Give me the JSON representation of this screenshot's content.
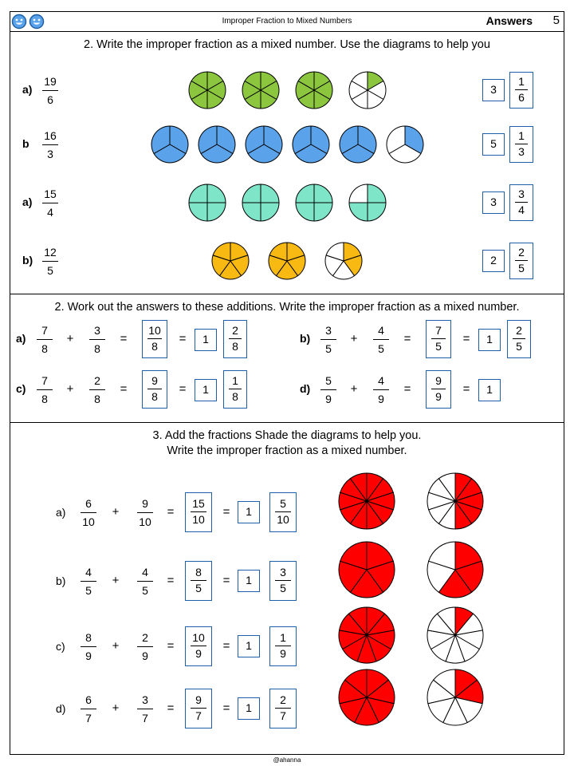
{
  "header": {
    "title": "Improper Fraction to Mixed Numbers",
    "answers": "Answers",
    "page": "5"
  },
  "colors": {
    "green": "#8cc63f",
    "blue": "#5aa3ea",
    "teal": "#7fe5c8",
    "orange": "#f7b912",
    "red": "#ff0000",
    "box_border": "#1f5fa8"
  },
  "section1": {
    "title": "2. Write the improper fraction as a mixed number. Use the diagrams to help you",
    "rows": [
      {
        "label": "a)",
        "num": "19",
        "den": "6",
        "whole": "3",
        "rnum": "1",
        "rden": "6",
        "color": "green",
        "parts": 6,
        "full": 3,
        "partial": 1
      },
      {
        "label": "b",
        "num": "16",
        "den": "3",
        "whole": "5",
        "rnum": "1",
        "rden": "3",
        "color": "blue",
        "parts": 3,
        "full": 5,
        "partial": 1
      },
      {
        "label": "a)",
        "num": "15",
        "den": "4",
        "whole": "3",
        "rnum": "3",
        "rden": "4",
        "color": "teal",
        "parts": 4,
        "full": 3,
        "partial": 3
      },
      {
        "label": "b)",
        "num": "12",
        "den": "5",
        "whole": "2",
        "rnum": "2",
        "rden": "5",
        "color": "orange",
        "parts": 5,
        "full": 2,
        "partial": 2
      }
    ]
  },
  "section2": {
    "title": "2. Work out the answers to these additions. Write the improper fraction as a mixed number.",
    "items": [
      {
        "label": "a)",
        "a_num": "7",
        "a_den": "8",
        "b_num": "3",
        "b_den": "8",
        "plus": "+",
        "eq": "=",
        "s_num": "10",
        "s_den": "8",
        "eq2": "=",
        "whole": "1",
        "r_num": "2",
        "r_den": "8"
      },
      {
        "label": "b)",
        "a_num": "3",
        "a_den": "5",
        "b_num": "4",
        "b_den": "5",
        "plus": "+",
        "eq": "=",
        "s_num": "7",
        "s_den": "5",
        "eq2": "=",
        "whole": "1",
        "r_num": "2",
        "r_den": "5"
      },
      {
        "label": "c)",
        "a_num": "7",
        "a_den": "8",
        "b_num": "2",
        "b_den": "8",
        "plus": "+",
        "eq": "=",
        "s_num": "9",
        "s_den": "8",
        "eq2": "=",
        "whole": "1",
        "r_num": "1",
        "r_den": "8"
      },
      {
        "label": "d)",
        "a_num": "5",
        "a_den": "9",
        "b_num": "4",
        "b_den": "9",
        "plus": "+",
        "eq": "=",
        "s_num": "9",
        "s_den": "9",
        "eq2": "=",
        "whole": "1"
      }
    ]
  },
  "section3": {
    "title_line1": "3. Add the fractions Shade the diagrams to help you.",
    "title_line2": "Write the improper fraction as a mixed number.",
    "items": [
      {
        "label": "a)",
        "a_num": "6",
        "a_den": "10",
        "b_num": "9",
        "b_den": "10",
        "plus": "+",
        "eq": "=",
        "s_num": "15",
        "s_den": "10",
        "eq2": "=",
        "whole": "1",
        "r_num": "5",
        "r_den": "10",
        "parts": 10,
        "partial": 5
      },
      {
        "label": "b)",
        "a_num": "4",
        "a_den": "5",
        "b_num": "4",
        "b_den": "5",
        "plus": "+",
        "eq": "=",
        "s_num": "8",
        "s_den": "5",
        "eq2": "=",
        "whole": "1",
        "r_num": "3",
        "r_den": "5",
        "parts": 5,
        "partial": 3
      },
      {
        "label": "c)",
        "a_num": "8",
        "a_den": "9",
        "b_num": "2",
        "b_den": "9",
        "plus": "+",
        "eq": "=",
        "s_num": "10",
        "s_den": "9",
        "eq2": "=",
        "whole": "1",
        "r_num": "1",
        "r_den": "9",
        "parts": 9,
        "partial": 1
      },
      {
        "label": "d)",
        "a_num": "6",
        "a_den": "7",
        "b_num": "3",
        "b_den": "7",
        "plus": "+",
        "eq": "=",
        "s_num": "9",
        "s_den": "7",
        "eq2": "=",
        "whole": "1",
        "r_num": "2",
        "r_den": "7",
        "parts": 7,
        "partial": 2
      }
    ]
  },
  "footer": {
    "credit": "@ahanna"
  }
}
